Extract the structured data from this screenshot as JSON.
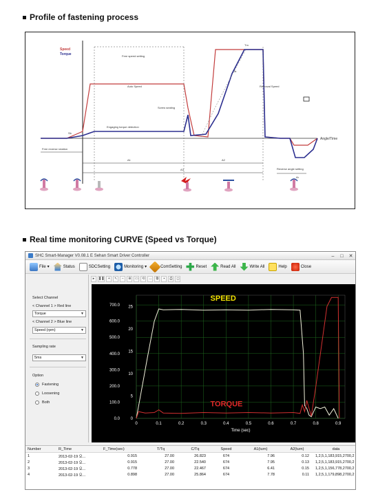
{
  "headings": {
    "profile": "Profile of fastening process",
    "realtime": "Real time monitoring CURVE (Speed vs Torque)"
  },
  "diagram": {
    "legend_speed": "Speed",
    "legend_torque": "Torque",
    "axis_label": "Angle/Time",
    "labels": {
      "free_speed": "Free speed setting",
      "auto_speed": "Auto Speed",
      "removal_speed": "Removal Speed",
      "screw_seating": "Screw seating",
      "engaging": "Engaging torque detection",
      "free_reverse": "Free reverse rotation",
      "reverse_angle": "Reverse angle setting",
      "tm": "Tm",
      "ta": "Ta",
      "a1": "A1",
      "a2": "A2",
      "a3": "A3",
      "ar": "Ar",
      "sb": "Sb"
    },
    "colors": {
      "speed": "#c23b3b",
      "torque": "#2b2e8f"
    }
  },
  "app": {
    "title": "SHC Smart-Manager  V0.08.1 E   Sehan Smart Driver Controller",
    "toolbar": {
      "file": "File",
      "status": "Status",
      "sdc": "SDCSetting",
      "monitoring": "Monitoring",
      "com": "ComSetting",
      "reset": "Reset",
      "read": "Read All",
      "write": "Write All",
      "help": "Help",
      "close": "Close"
    },
    "left_panel": {
      "select_channel": "Select Channel",
      "ch1_label": "< Channel 1 > Red line",
      "ch1_value": "Torque",
      "ch2_label": "< Channel 2 > Blue line",
      "ch2_value": "Speed (rpm)",
      "sampling_label": "Sampling rate",
      "sampling_value": "5ms",
      "option_label": "Option",
      "opt_fastening": "Fastening",
      "opt_loosening": "Loosening",
      "opt_both": "Both"
    },
    "table": {
      "headers": [
        "Number",
        "R_Time",
        "F_Time(sec)",
        "T/Tq",
        "C/Tq",
        "Speed",
        "A1(turn)",
        "A2(turn)",
        "data"
      ],
      "rows": [
        [
          "1",
          "2013-02-19 오...",
          "0.915",
          "27.00",
          "26.823",
          "674",
          "7.96",
          "0.12",
          "1,2,5,1,183,915,2700,2"
        ],
        [
          "2",
          "2013-02-19 오...",
          "0.915",
          "27.00",
          "22.540",
          "674",
          "7.95",
          "0.13",
          "1,2,5,1,183,915,2700,2"
        ],
        [
          "3",
          "2013-02-19 오...",
          "0.778",
          "27.00",
          "22.467",
          "674",
          "6.41",
          "0.15",
          "1,2,5,1,156,778,2700,2"
        ],
        [
          "4",
          "2013-02-19 오...",
          "0.898",
          "27.00",
          "25.864",
          "674",
          "7.78",
          "0.11",
          "1,2,5,1,179,898,2700,2"
        ]
      ]
    }
  },
  "chart_data": {
    "type": "line",
    "title": "",
    "xlabel": "Time (sec)",
    "xlim": [
      0,
      0.93
    ],
    "left_axis": {
      "ticks": [
        "0.0",
        "100.0",
        "200.0",
        "300.0",
        "400.0",
        "500.0",
        "600.0",
        "700.0"
      ],
      "ylim": [
        0,
        760
      ]
    },
    "right_axis": {
      "ticks": [
        "0",
        "5",
        "10",
        "15",
        "20",
        "25"
      ],
      "ylim": [
        0,
        27.5
      ]
    },
    "x_ticks": [
      "0",
      "0.1",
      "0.2",
      "0.3",
      "0.4",
      "0.5",
      "0.6",
      "0.7",
      "0.8",
      "0.9"
    ],
    "annotations": {
      "speed_label": "SPEED",
      "torque_label": "TORQUE"
    },
    "grid": true,
    "series": [
      {
        "name": "SPEED",
        "axis": "left",
        "color": "#f2f2dc",
        "x": [
          0,
          0.02,
          0.05,
          0.08,
          0.1,
          0.12,
          0.2,
          0.3,
          0.4,
          0.5,
          0.6,
          0.7,
          0.73,
          0.745,
          0.75,
          0.76,
          0.77,
          0.78,
          0.8,
          0.82,
          0.84,
          0.86,
          0.88,
          0.9
        ],
        "y": [
          0,
          150,
          380,
          600,
          675,
          670,
          672,
          668,
          670,
          668,
          672,
          670,
          668,
          400,
          80,
          60,
          20,
          10,
          70,
          60,
          70,
          20,
          60,
          0
        ]
      },
      {
        "name": "TORQUE",
        "axis": "right",
        "color": "#d23030",
        "x": [
          0,
          0.01,
          0.04,
          0.08,
          0.1,
          0.12,
          0.2,
          0.3,
          0.4,
          0.5,
          0.6,
          0.7,
          0.73,
          0.74,
          0.75,
          0.76,
          0.78,
          0.8,
          0.85,
          0.87,
          0.9,
          0.905
        ],
        "y": [
          0,
          1.5,
          1.2,
          1.3,
          1.9,
          1.2,
          1.1,
          1.3,
          1.2,
          1.3,
          1.2,
          1.3,
          1.1,
          3,
          1.5,
          4,
          0.5,
          7,
          25,
          27,
          27,
          0
        ]
      }
    ]
  }
}
